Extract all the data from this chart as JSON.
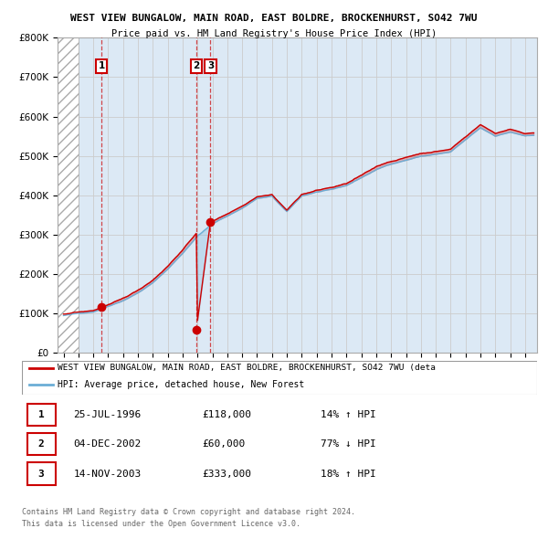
{
  "title1": "WEST VIEW BUNGALOW, MAIN ROAD, EAST BOLDRE, BROCKENHURST, SO42 7WU",
  "title2": "Price paid vs. HM Land Registry's House Price Index (HPI)",
  "ylim": [
    0,
    800000
  ],
  "yticks": [
    0,
    100000,
    200000,
    300000,
    400000,
    500000,
    600000,
    700000,
    800000
  ],
  "ytick_labels": [
    "£0",
    "£100K",
    "£200K",
    "£300K",
    "£400K",
    "£500K",
    "£600K",
    "£700K",
    "£800K"
  ],
  "xlim_start": 1993.6,
  "xlim_end": 2025.8,
  "hpi_color": "#6baed6",
  "price_color": "#cc0000",
  "hatch_end_year": 1995.0,
  "transactions": [
    {
      "year": 1996.56,
      "price": 118000,
      "label": "1"
    },
    {
      "year": 2002.92,
      "price": 60000,
      "label": "2"
    },
    {
      "year": 2003.87,
      "price": 333000,
      "label": "3"
    }
  ],
  "legend_line1": "WEST VIEW BUNGALOW, MAIN ROAD, EAST BOLDRE, BROCKENHURST, SO42 7WU (deta",
  "legend_line2": "HPI: Average price, detached house, New Forest",
  "footer1": "Contains HM Land Registry data © Crown copyright and database right 2024.",
  "footer2": "This data is licensed under the Open Government Licence v3.0.",
  "table_rows": [
    {
      "num": "1",
      "date": "25-JUL-1996",
      "price": "£118,000",
      "pct": "14% ↑ HPI"
    },
    {
      "num": "2",
      "date": "04-DEC-2002",
      "price": "£60,000",
      "pct": "77% ↓ HPI"
    },
    {
      "num": "3",
      "date": "14-NOV-2003",
      "price": "£333,000",
      "pct": "18% ↑ HPI"
    }
  ],
  "background_color": "#ffffff",
  "plot_bg_color": "#dce9f5"
}
